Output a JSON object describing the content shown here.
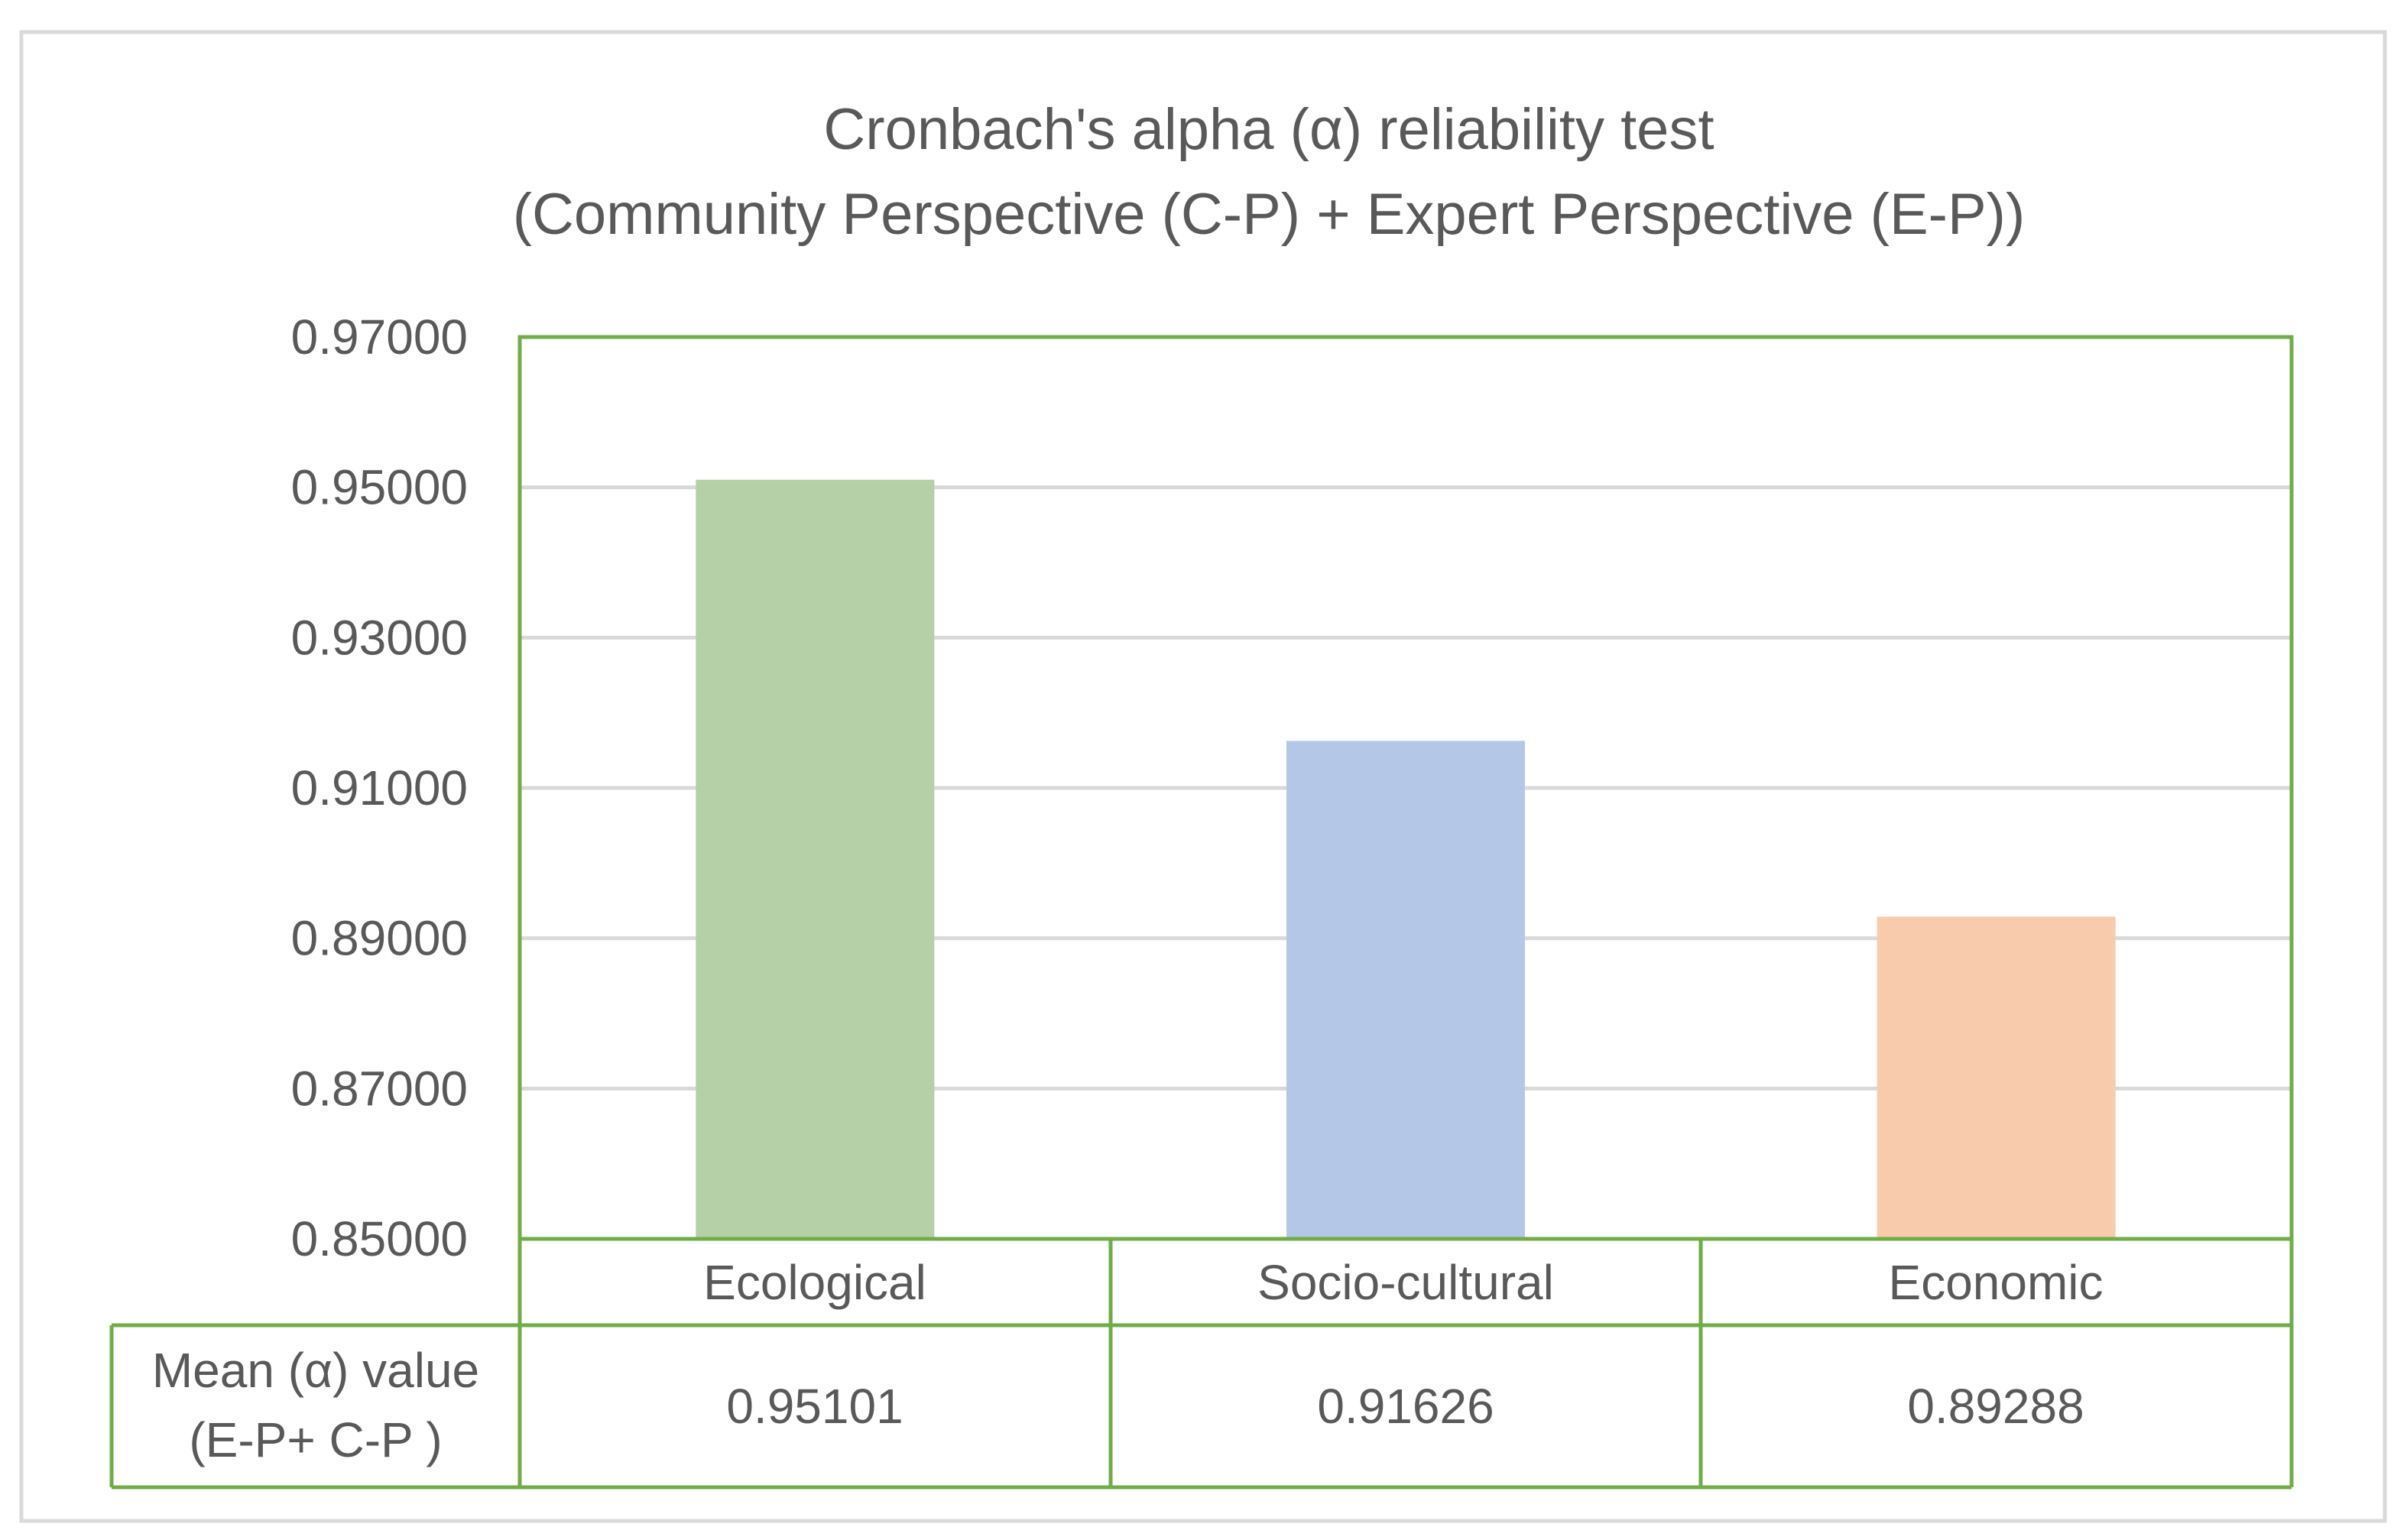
{
  "chart_data": {
    "type": "bar",
    "title_lines": [
      "Cronbach's alpha (α) reliability test",
      "(Community Perspective (C-P) + Expert Perspective (E-P))"
    ],
    "categories": [
      "Ecological",
      "Socio-cultural",
      "Economic"
    ],
    "values": [
      0.95101,
      0.91626,
      0.89288
    ],
    "value_labels": [
      "0.95101",
      "0.91626",
      "0.89288"
    ],
    "bar_colors": [
      "#b5cfa7",
      "#b4c7e7",
      "#f7cbac"
    ],
    "ylim": [
      0.85,
      0.97
    ],
    "yticks": [
      "0.85000",
      "0.87000",
      "0.89000",
      "0.91000",
      "0.93000",
      "0.95000",
      "0.97000"
    ],
    "ytick_values": [
      0.85,
      0.87,
      0.89,
      0.91,
      0.93,
      0.95,
      0.97
    ],
    "grid": true,
    "data_table": {
      "row_header_lines": [
        "Mean (α)  value",
        "(E-P+ C-P )"
      ]
    },
    "colors": {
      "frame": "#d9d9d9",
      "plot_border": "#70ad47",
      "gridline": "#d9d9d9",
      "text": "#595959"
    }
  }
}
